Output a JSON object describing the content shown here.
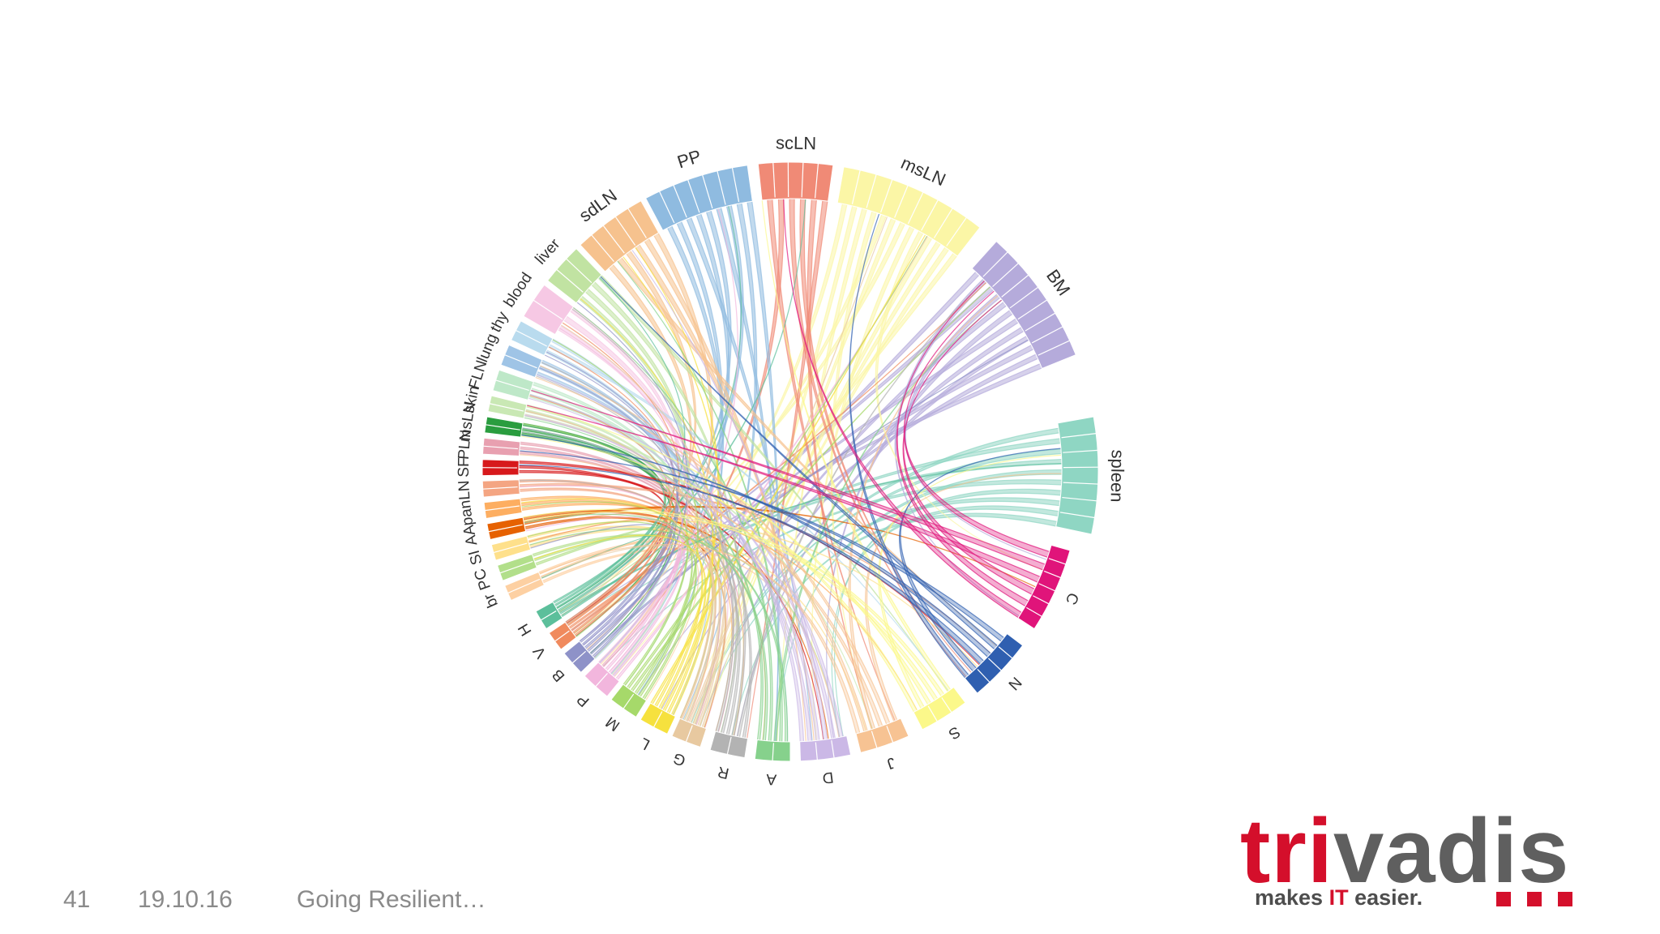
{
  "slide": {
    "number": "41",
    "date": "19.10.16",
    "footer_title": "Going Resilient…"
  },
  "logo": {
    "word_red": "tri",
    "word_gray": "vadis",
    "tagline_pre": "makes ",
    "tagline_it": "IT",
    "tagline_post": " easier.",
    "colors": {
      "red": "#d40f2b",
      "gray": "#5f5f5f"
    }
  },
  "diagram": {
    "groups": [
      {
        "label": "spleen",
        "color": "#8fd6c3"
      },
      {
        "label": "BM",
        "color": "#b5abdb"
      },
      {
        "label": "msLN",
        "color": "#fbf6a6"
      },
      {
        "label": "scLN",
        "color": "#f08a76"
      },
      {
        "label": "PP",
        "color": "#8fbbe0"
      },
      {
        "label": "sdLN",
        "color": "#f6c28e"
      },
      {
        "label": "liver",
        "color": "#c1e3a2"
      },
      {
        "label": "blood",
        "color": "#f6c8e4"
      },
      {
        "label": "thy",
        "color": "#b9dbee"
      },
      {
        "label": "lung",
        "color": "#9fc4e6"
      },
      {
        "label": "FLN",
        "color": "#bee8c8"
      },
      {
        "label": "skin",
        "color": "#c9e8b4"
      },
      {
        "label": "msLN",
        "color": "#2a9d3f"
      },
      {
        "label": "PLN",
        "color": "#e8a0b0"
      },
      {
        "label": "SF",
        "color": "#d7191c"
      },
      {
        "label": "LN",
        "color": "#f4a582"
      },
      {
        "label": "pan",
        "color": "#fdae61"
      },
      {
        "label": "AA",
        "color": "#e66101"
      },
      {
        "label": "SI",
        "color": "#fee08b"
      },
      {
        "label": "PC",
        "color": "#b2df8a"
      },
      {
        "label": "br",
        "color": "#fdd0a2"
      },
      {
        "label": "H",
        "color": "#5cbf9b"
      },
      {
        "label": "V",
        "color": "#f08a5d"
      },
      {
        "label": "B",
        "color": "#8e92c8"
      },
      {
        "label": "P",
        "color": "#f2b6dd"
      },
      {
        "label": "M",
        "color": "#a6d96a"
      },
      {
        "label": "L",
        "color": "#f6e13e"
      },
      {
        "label": "G",
        "color": "#e8c9a0"
      },
      {
        "label": "R",
        "color": "#b3b3b3"
      },
      {
        "label": "A",
        "color": "#86d18c"
      },
      {
        "label": "D",
        "color": "#cbb8e6"
      },
      {
        "label": "J",
        "color": "#f7c393"
      },
      {
        "label": "S",
        "color": "#fbf88a"
      },
      {
        "label": "N",
        "color": "#2f5fb0"
      },
      {
        "label": "C",
        "color": "#e0147a"
      }
    ]
  }
}
